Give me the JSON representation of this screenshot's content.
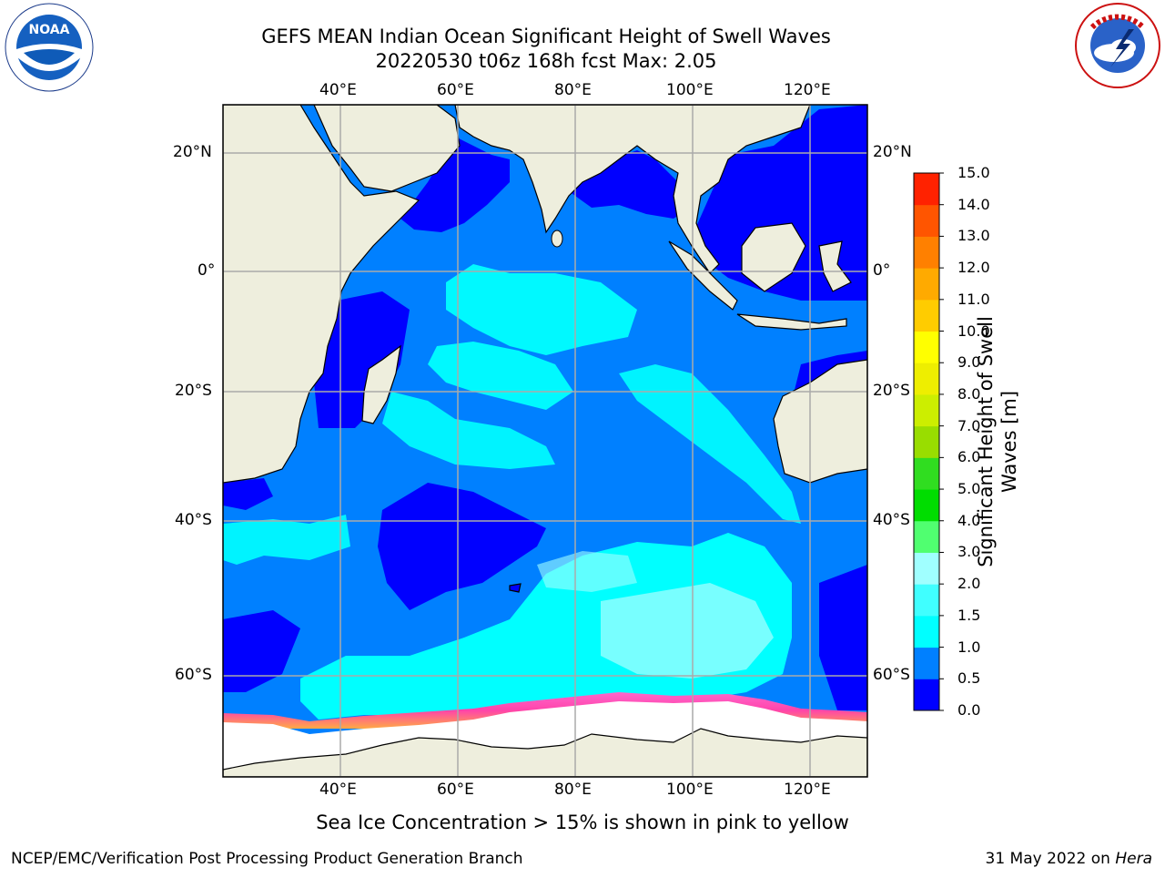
{
  "header": {
    "title_line1": "GEFS MEAN Indian Ocean Significant Height of Swell Waves",
    "title_line2": "20220530 t06z 168h fcst   Max: 2.05"
  },
  "logos": {
    "left": "NOAA",
    "left_ring": "NATIONAL OCEANIC AND ATMOSPHERIC ADMINISTRATION · U.S. DEPARTMENT OF COMMERCE",
    "right_ring": "NATIONAL WEATHER SERVICE"
  },
  "map": {
    "lon_labels": [
      "40°E",
      "60°E",
      "80°E",
      "100°E",
      "120°E"
    ],
    "lat_labels": [
      "20°N",
      "0°",
      "20°S",
      "40°S",
      "60°S"
    ],
    "extent": {
      "lon_min": 20,
      "lon_max": 130,
      "lat_min": -70,
      "lat_max": 28
    },
    "land_color": "#eeeedd",
    "ice_color": "#ffffff"
  },
  "colorbar": {
    "title_line1": "Significant Height of Swell",
    "title_line2": "Waves [m]",
    "ticks": [
      "0.0",
      "0.5",
      "1.0",
      "1.5",
      "2.0",
      "3.0",
      "4.0",
      "5.0",
      "6.0",
      "7.0",
      "8.0",
      "9.0",
      "10.0",
      "11.0",
      "12.0",
      "13.0",
      "14.0",
      "15.0"
    ],
    "colors": [
      "#0000ff",
      "#0080ff",
      "#00ffff",
      "#40ffff",
      "#a0ffff",
      "#50ff70",
      "#00dd00",
      "#30dd20",
      "#99dd00",
      "#ccee00",
      "#eeee00",
      "#ffff00",
      "#ffcc00",
      "#ffaa00",
      "#ff8000",
      "#ff5500",
      "#ff2200"
    ]
  },
  "caption": "Sea Ice Concentration > 15% is shown in pink to yellow",
  "footer": {
    "left": "NCEP/EMC/Verification Post Processing Product Generation Branch",
    "date": "31 May 2022 on",
    "machine": "Hera"
  }
}
